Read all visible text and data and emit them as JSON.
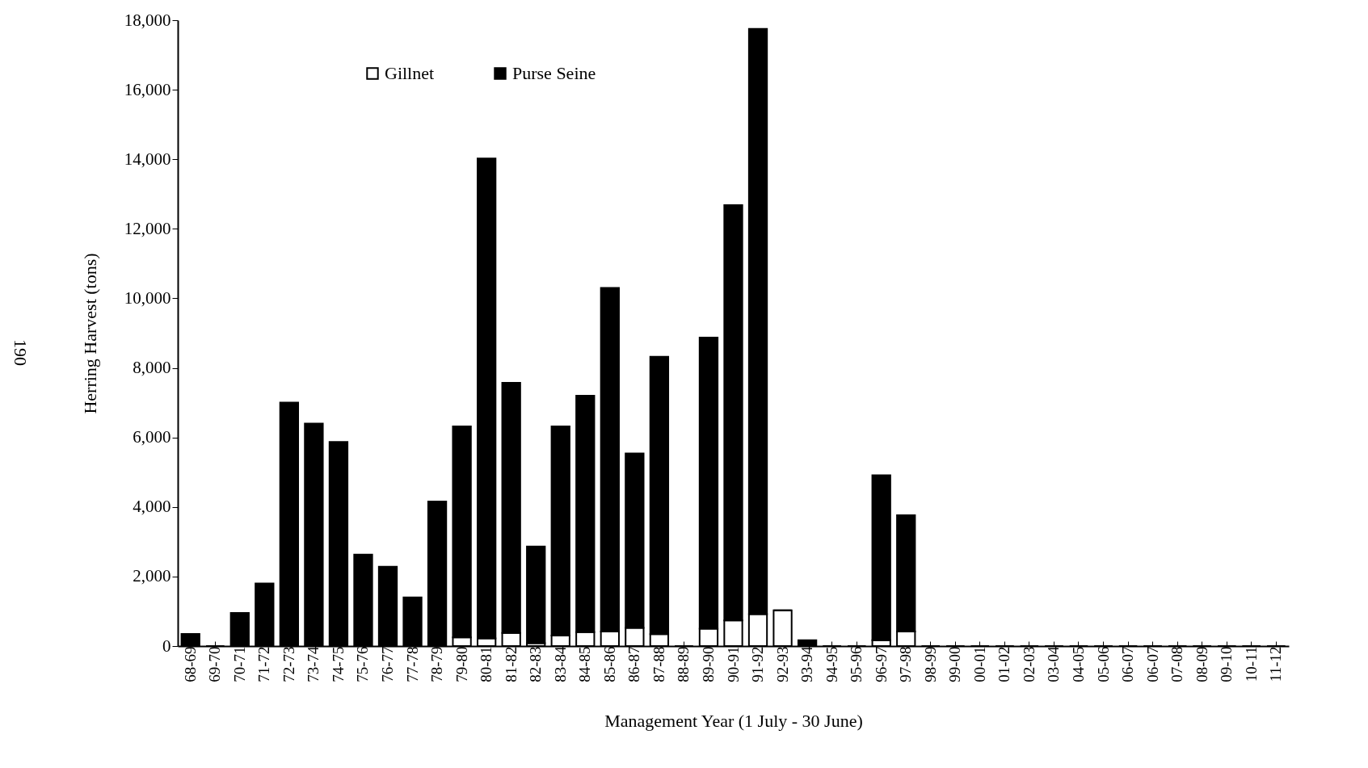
{
  "chart_data": {
    "type": "bar",
    "stacked": true,
    "xlabel": "Management  Year (1 July - 30 June)",
    "ylabel": "Herring Harvest (tons)",
    "annotations": [
      "190"
    ],
    "categories": [
      "68-69",
      "69-70",
      "70-71",
      "71-72",
      "72-73",
      "73-74",
      "74-75",
      "75-76",
      "76-77",
      "77-78",
      "78-79",
      "79-80",
      "80-81",
      "81-82",
      "82-83",
      "83-84",
      "84-85",
      "85-86",
      "86-87",
      "87-88",
      "88-89",
      "89-90",
      "90-91",
      "91-92",
      "92-93",
      "93-94",
      "94-95",
      "95-96",
      "96-97",
      "97-98",
      "98-99",
      "99-00",
      "00-01",
      "01-02",
      "02-03",
      "03-04",
      "04-05",
      "05-06",
      "06-07",
      "06-07",
      "07-08",
      "08-09",
      "09-10",
      "10-11",
      "11-12"
    ],
    "series": [
      {
        "name": "Gillnet",
        "color": "#ffffff",
        "values": [
          0,
          0,
          0,
          0,
          0,
          0,
          0,
          0,
          0,
          0,
          0,
          250,
          220,
          380,
          80,
          300,
          400,
          420,
          520,
          340,
          0,
          500,
          740,
          920,
          1030,
          0,
          0,
          0,
          170,
          420,
          0,
          0,
          0,
          0,
          0,
          0,
          0,
          0,
          0,
          0,
          0,
          0,
          0,
          0,
          0
        ]
      },
      {
        "name": "Purse Seine",
        "color": "#000000",
        "values": [
          350,
          0,
          950,
          1800,
          7000,
          6400,
          5870,
          2630,
          2280,
          1400,
          4160,
          6070,
          13800,
          7190,
          2780,
          6020,
          6800,
          9880,
          5020,
          7980,
          0,
          8370,
          11940,
          16830,
          0,
          170,
          0,
          0,
          4740,
          3340,
          0,
          0,
          0,
          0,
          0,
          0,
          0,
          0,
          0,
          0,
          0,
          0,
          0,
          0,
          0
        ]
      }
    ],
    "ylim": [
      0,
      18000
    ],
    "yticks": [
      0,
      {
        "value": 2000,
        "label": "2,000"
      },
      {
        "value": 4000,
        "label": "4,000"
      },
      {
        "value": 6000,
        "label": "6,000"
      },
      {
        "value": 8000,
        "label": "8,000"
      },
      {
        "value": 10000,
        "label": "10,000"
      },
      {
        "value": 12000,
        "label": "12,000"
      },
      {
        "value": 14000,
        "label": "14,000"
      },
      {
        "value": 16000,
        "label": "16,000"
      },
      {
        "value": 18000,
        "label": "18,000"
      }
    ],
    "grid": false,
    "legend": "top"
  }
}
